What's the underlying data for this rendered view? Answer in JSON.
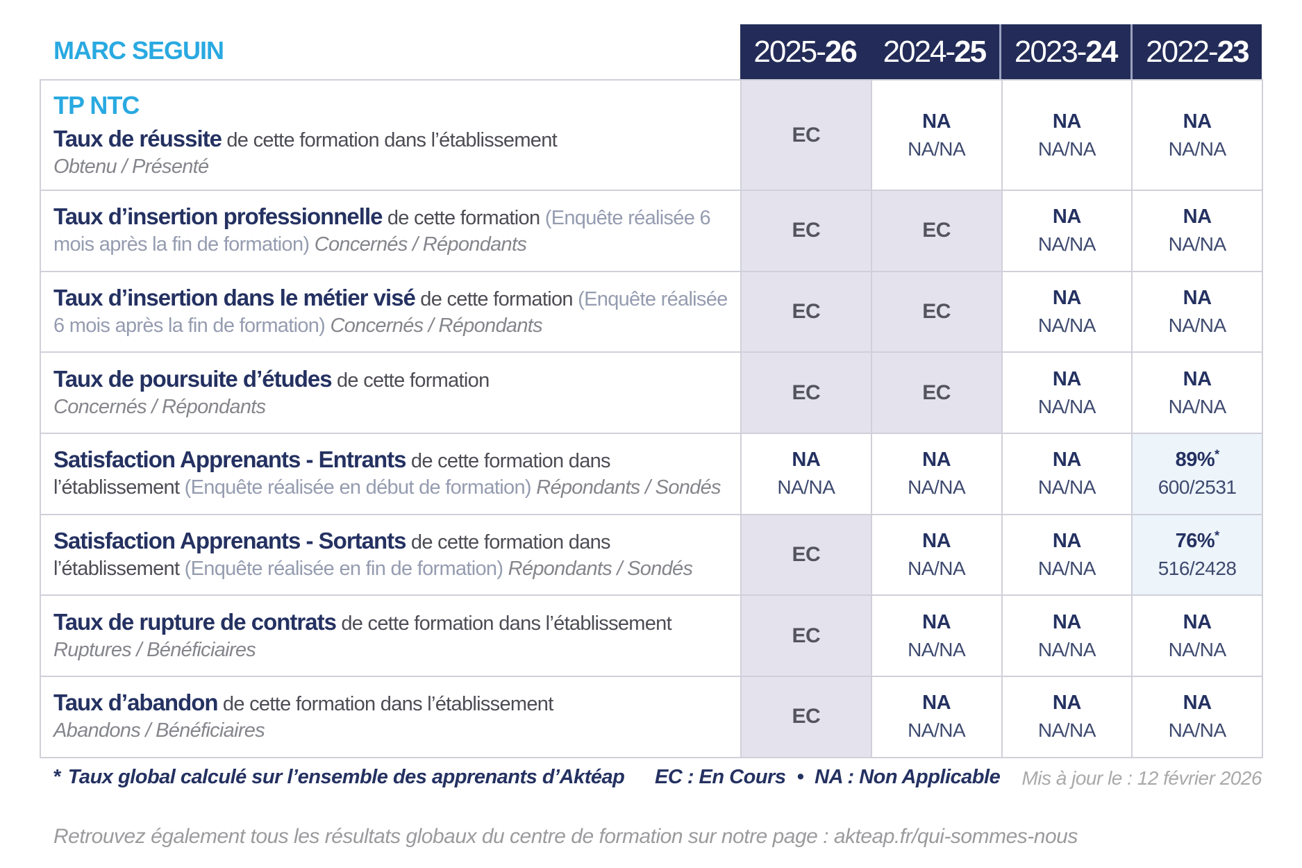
{
  "brand": "MARC SEGUIN",
  "course": "TP NTC",
  "header": {
    "years": [
      {
        "prefix": "2025-",
        "bold": "26"
      },
      {
        "prefix": "2024-",
        "bold": "25"
      },
      {
        "prefix": "2023-",
        "bold": "24"
      },
      {
        "prefix": "2022-",
        "bold": "23"
      }
    ]
  },
  "cell_labels": {
    "ec": "EC",
    "na": "NA",
    "na_ratio": "NA/NA",
    "star": "*"
  },
  "table": {
    "rows": [
      {
        "title": "Taux de réussite",
        "desc": " de cette formation dans l’établissement",
        "paren": "",
        "sub": "Obtenu / Présenté",
        "sub_layout": "block",
        "has_course": true,
        "cells": [
          {
            "t": "ec"
          },
          {
            "t": "na"
          },
          {
            "t": "na"
          },
          {
            "t": "na"
          }
        ]
      },
      {
        "title": "Taux d’insertion professionnelle",
        "desc": " de cette formation ",
        "paren": "(Enquête réalisée 6 mois après la fin de formation) ",
        "sub": "Concernés / Répondants",
        "sub_layout": "inline",
        "has_course": false,
        "cells": [
          {
            "t": "ec"
          },
          {
            "t": "ec"
          },
          {
            "t": "na"
          },
          {
            "t": "na"
          }
        ]
      },
      {
        "title": "Taux d’insertion dans le métier visé",
        "desc": " de cette formation ",
        "paren": "(Enquête réalisée 6 mois après la fin de formation) ",
        "sub": "Concernés / Répondants",
        "sub_layout": "inline",
        "has_course": false,
        "cells": [
          {
            "t": "ec"
          },
          {
            "t": "ec"
          },
          {
            "t": "na"
          },
          {
            "t": "na"
          }
        ]
      },
      {
        "title": "Taux de poursuite d’études",
        "desc": " de cette formation",
        "paren": "",
        "sub": "Concernés / Répondants",
        "sub_layout": "block",
        "has_course": false,
        "cells": [
          {
            "t": "ec"
          },
          {
            "t": "ec"
          },
          {
            "t": "na"
          },
          {
            "t": "na"
          }
        ]
      },
      {
        "title": "Satisfaction Apprenants - Entrants",
        "desc": " de cette formation dans l’établissement ",
        "paren": "(Enquête réalisée en début de formation) ",
        "sub": "Répondants / Sondés",
        "sub_layout": "inline",
        "has_course": false,
        "cells": [
          {
            "t": "na"
          },
          {
            "t": "na"
          },
          {
            "t": "na"
          },
          {
            "t": "pct",
            "value": "89%",
            "detail": "600/2531"
          }
        ]
      },
      {
        "title": "Satisfaction Apprenants - Sortants",
        "desc": " de cette formation dans l’établissement ",
        "paren": "(Enquête réalisée en fin de formation) ",
        "sub": "Répondants / Sondés",
        "sub_layout": "inline",
        "has_course": false,
        "cells": [
          {
            "t": "ec"
          },
          {
            "t": "na"
          },
          {
            "t": "na"
          },
          {
            "t": "pct",
            "value": "76%",
            "detail": "516/2428"
          }
        ]
      },
      {
        "title": "Taux de rupture de contrats",
        "desc": " de cette formation dans l’établissement",
        "paren": "",
        "sub": "Ruptures / Bénéficiaires",
        "sub_layout": "block",
        "has_course": false,
        "cells": [
          {
            "t": "ec"
          },
          {
            "t": "na"
          },
          {
            "t": "na"
          },
          {
            "t": "na"
          }
        ]
      },
      {
        "title": "Taux d’abandon",
        "desc": " de cette formation dans l’établissement",
        "paren": "",
        "sub": "Abandons / Bénéficiaires",
        "sub_layout": "block",
        "has_course": false,
        "cells": [
          {
            "t": "ec"
          },
          {
            "t": "na"
          },
          {
            "t": "na"
          },
          {
            "t": "na"
          }
        ]
      }
    ]
  },
  "footer": {
    "note_star": "*",
    "note": "Taux global calculé sur l’ensemble des apprenants d’Aktéap",
    "legend_ec": "EC : En Cours",
    "legend_sep": "•",
    "legend_na": "NA : Non Applicable",
    "updated": "Mis à jour le : 12 février 2026",
    "more": "Retrouvez également tous les résultats globaux du centre de formation sur notre page : akteap.fr/qui-sommes-nous"
  },
  "colors": {
    "accent": "#29a9e1",
    "navy": "#243161",
    "header_bg": "#232c58",
    "ec_bg": "#e4e3ed",
    "hl_bg": "#edf4fa",
    "border": "#d0d0da"
  }
}
